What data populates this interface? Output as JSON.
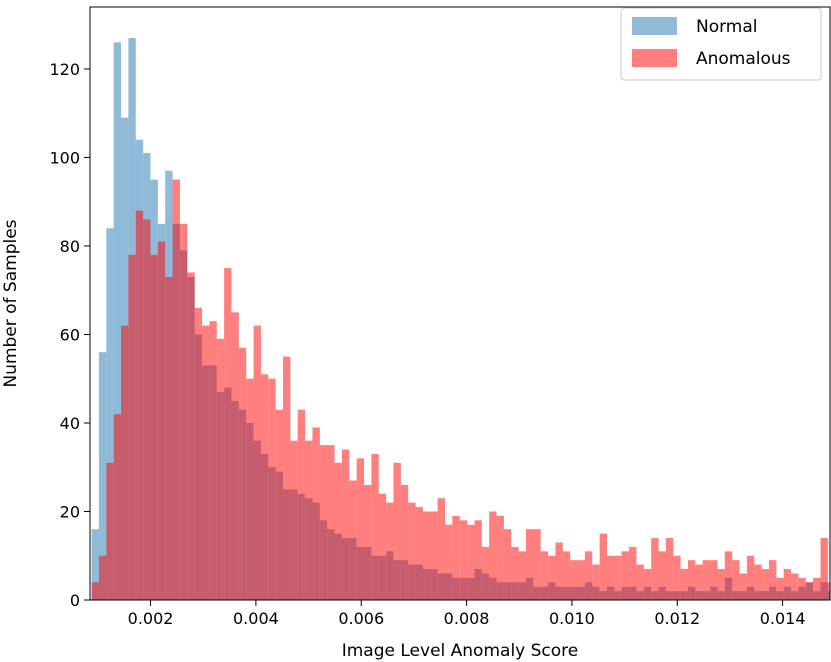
{
  "chart_data": {
    "type": "histogram",
    "title": "",
    "xlabel": "Image Level Anomaly Score",
    "ylabel": "Number of Samples",
    "xlim": [
      0.00085,
      0.0149
    ],
    "ylim": [
      0,
      134
    ],
    "xticks": [
      0.002,
      0.004,
      0.006,
      0.008,
      0.01,
      0.012,
      0.014
    ],
    "xtick_labels": [
      "0.002",
      "0.004",
      "0.006",
      "0.008",
      "0.010",
      "0.012",
      "0.014"
    ],
    "yticks": [
      0,
      20,
      40,
      60,
      80,
      100,
      120
    ],
    "ytick_labels": [
      "0",
      "20",
      "40",
      "60",
      "80",
      "100",
      "120"
    ],
    "legend_position": "top-right",
    "bin_start": 0.00088,
    "bin_width": 0.0001398,
    "series": [
      {
        "name": "Normal",
        "color": "#1f77b4",
        "opacity": 0.5,
        "values": [
          16,
          56,
          84,
          126,
          109,
          127,
          104,
          101,
          95,
          85,
          97,
          85,
          79,
          73,
          60,
          53,
          53,
          47,
          48,
          45,
          43,
          40,
          36,
          33,
          30,
          29,
          25,
          25,
          24,
          23,
          22,
          18,
          16,
          15,
          14,
          14,
          12,
          12,
          10,
          10,
          11,
          9,
          9,
          8,
          8,
          7,
          7,
          6,
          6,
          5,
          5,
          5,
          7,
          6,
          5,
          4,
          4,
          4,
          4,
          5,
          3,
          3,
          4,
          3,
          3,
          3,
          3,
          4,
          3,
          2,
          3,
          2,
          3,
          3,
          2,
          3,
          2,
          3,
          2,
          2,
          2,
          3,
          2,
          2,
          3,
          2,
          5,
          2,
          2,
          3,
          2,
          2,
          3,
          2,
          3,
          2,
          3,
          4,
          2,
          4,
          2
        ]
      },
      {
        "name": "Anomalous",
        "color": "#ff0000",
        "opacity": 0.5,
        "values": [
          4,
          10,
          31,
          42,
          62,
          78,
          88,
          86,
          78,
          81,
          73,
          95,
          85,
          74,
          66,
          62,
          63,
          59,
          75,
          65,
          57,
          50,
          62,
          51,
          50,
          43,
          55,
          36,
          43,
          36,
          39,
          35,
          35,
          31,
          34,
          27,
          32,
          26,
          33,
          24,
          22,
          31,
          26,
          22,
          21,
          20,
          20,
          23,
          17,
          19,
          18,
          17,
          18,
          12,
          20,
          19,
          16,
          12,
          11,
          16,
          16,
          11,
          10,
          13,
          11,
          9,
          9,
          11,
          8,
          15,
          10,
          10,
          11,
          12,
          8,
          7,
          14,
          11,
          14,
          10,
          7,
          9,
          8,
          9,
          9,
          7,
          11,
          9,
          6,
          10,
          8,
          7,
          9,
          5,
          7,
          6,
          5,
          4,
          5,
          14,
          4
        ]
      }
    ]
  }
}
